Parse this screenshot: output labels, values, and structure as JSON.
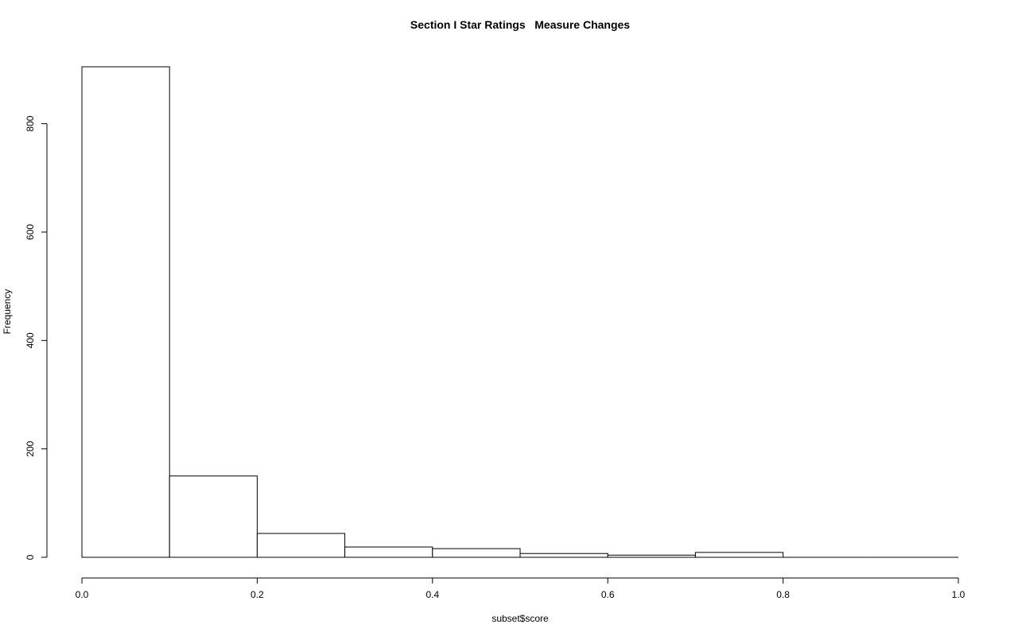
{
  "chart_data": {
    "type": "bar",
    "title": "Section I Star Ratings   Measure Changes",
    "xlabel": "subset$score",
    "ylabel": "Frequency",
    "bins": [
      {
        "x0": 0.0,
        "x1": 0.1,
        "count": 905
      },
      {
        "x0": 0.1,
        "x1": 0.2,
        "count": 150
      },
      {
        "x0": 0.2,
        "x1": 0.3,
        "count": 44
      },
      {
        "x0": 0.3,
        "x1": 0.4,
        "count": 19
      },
      {
        "x0": 0.4,
        "x1": 0.5,
        "count": 16
      },
      {
        "x0": 0.5,
        "x1": 0.6,
        "count": 7
      },
      {
        "x0": 0.6,
        "x1": 0.7,
        "count": 4
      },
      {
        "x0": 0.7,
        "x1": 0.8,
        "count": 9
      },
      {
        "x0": 0.8,
        "x1": 0.9,
        "count": 0
      },
      {
        "x0": 0.9,
        "x1": 1.0,
        "count": 0
      }
    ],
    "xlim": [
      0,
      1
    ],
    "ylim": [
      0,
      905
    ],
    "xticks": [
      "0.0",
      "0.2",
      "0.4",
      "0.6",
      "0.8",
      "1.0"
    ],
    "yticks": [
      "0",
      "200",
      "400",
      "600",
      "800"
    ],
    "grid": false,
    "legend": "none"
  }
}
